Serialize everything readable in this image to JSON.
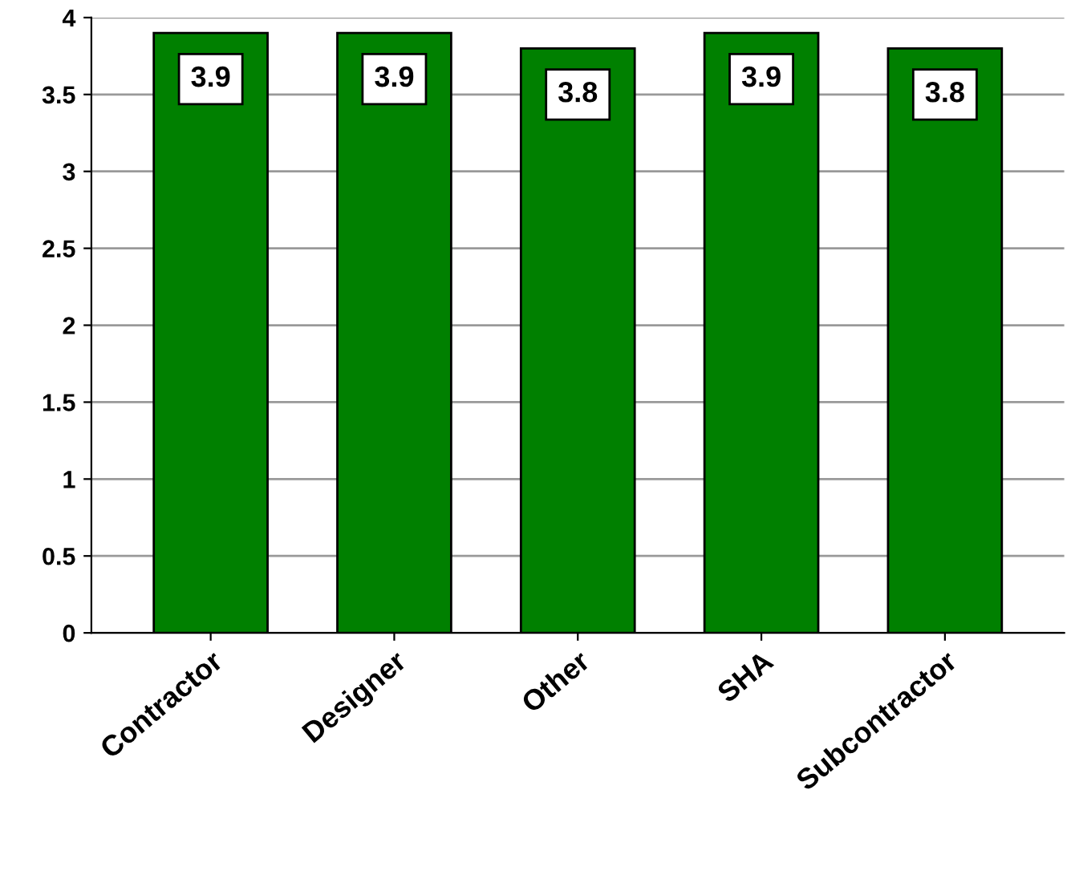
{
  "chart_data": {
    "type": "bar",
    "categories": [
      "Contractor",
      "Designer",
      "Other",
      "SHA",
      "Subcontractor"
    ],
    "values": [
      3.9,
      3.9,
      3.8,
      3.9,
      3.8
    ],
    "color": "#008000",
    "ylim": [
      0,
      4
    ],
    "yticks": [
      0,
      0.5,
      1,
      1.5,
      2,
      2.5,
      3,
      3.5,
      4
    ],
    "grid": "y",
    "data_labels": true
  }
}
